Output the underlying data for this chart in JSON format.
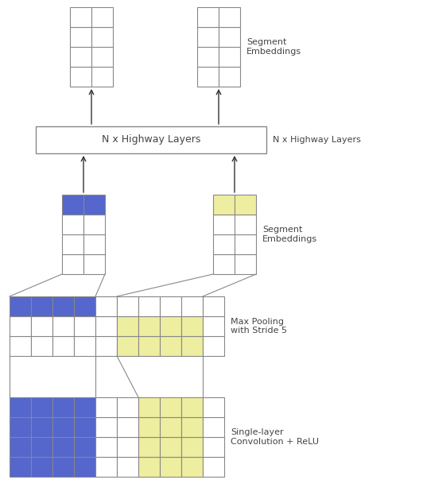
{
  "blue": "#5566cc",
  "yellow": "#eeeea0",
  "white": "#ffffff",
  "edge": "#888888",
  "text_color": "#444444",
  "bg": "#ffffff",
  "fig_width": 5.32,
  "fig_height": 6.28,
  "labels": {
    "seg_embed_top": "Segment\nEmbeddings",
    "highway": "N x Highway Layers",
    "seg_embed_mid": "Segment\nEmbeddings",
    "maxpool": "Max Pooling\nwith Stride 5",
    "conv": "Single-layer\nConvolution + ReLU"
  }
}
